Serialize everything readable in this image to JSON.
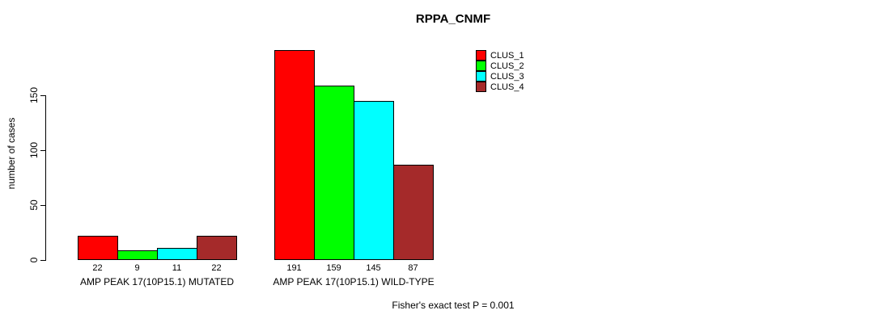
{
  "title": "RPPA_CNMF",
  "footer": "Fisher's exact test P = 0.001",
  "chart_data": {
    "type": "bar",
    "title": "RPPA_CNMF",
    "ylabel": "number of cases",
    "xlabel": "",
    "ylim": [
      0,
      191
    ],
    "yticks": [
      0,
      50,
      100,
      150
    ],
    "grid": false,
    "legend_position": "top-right",
    "categories": [
      "AMP PEAK 17(10P15.1) MUTATED",
      "AMP PEAK 17(10P15.1) WILD-TYPE"
    ],
    "series": [
      {
        "name": "CLUS_1",
        "color": "#FF0000",
        "values": [
          22,
          191
        ]
      },
      {
        "name": "CLUS_2",
        "color": "#00FF00",
        "values": [
          9,
          159
        ]
      },
      {
        "name": "CLUS_3",
        "color": "#00FFFF",
        "values": [
          11,
          145
        ]
      },
      {
        "name": "CLUS_4",
        "color": "#A52A2A",
        "values": [
          22,
          87
        ]
      }
    ],
    "annotation": "Fisher's exact test P = 0.001"
  }
}
